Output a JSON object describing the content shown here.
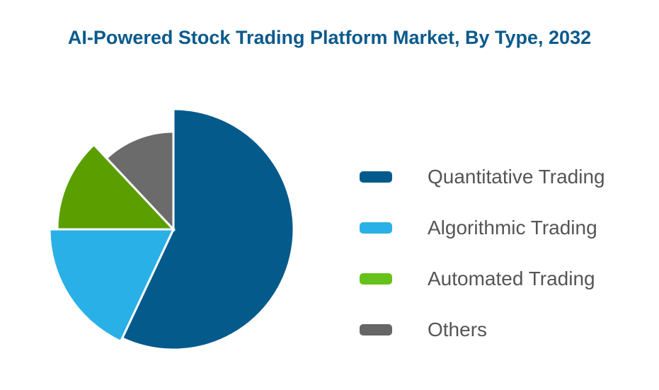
{
  "chart_data": {
    "type": "pie",
    "title": "AI-Powered Stock Trading Platform Market, By Type, 2032",
    "unit": "%",
    "slices": [
      {
        "label": "Quantitative Trading",
        "value": 57,
        "color": "#055a8c"
      },
      {
        "label": "Algorithmic Trading",
        "value": 18,
        "color": "#29b0e6"
      },
      {
        "label": "Automated Trading",
        "value": 13,
        "color": "#5a9e00"
      },
      {
        "label": "Others",
        "value": 12,
        "color": "#6b6b6b"
      }
    ],
    "legend_swatch_colors": [
      "#055a8c",
      "#29b0e6",
      "#66c21a",
      "#666666"
    ],
    "legend_position": "right"
  }
}
